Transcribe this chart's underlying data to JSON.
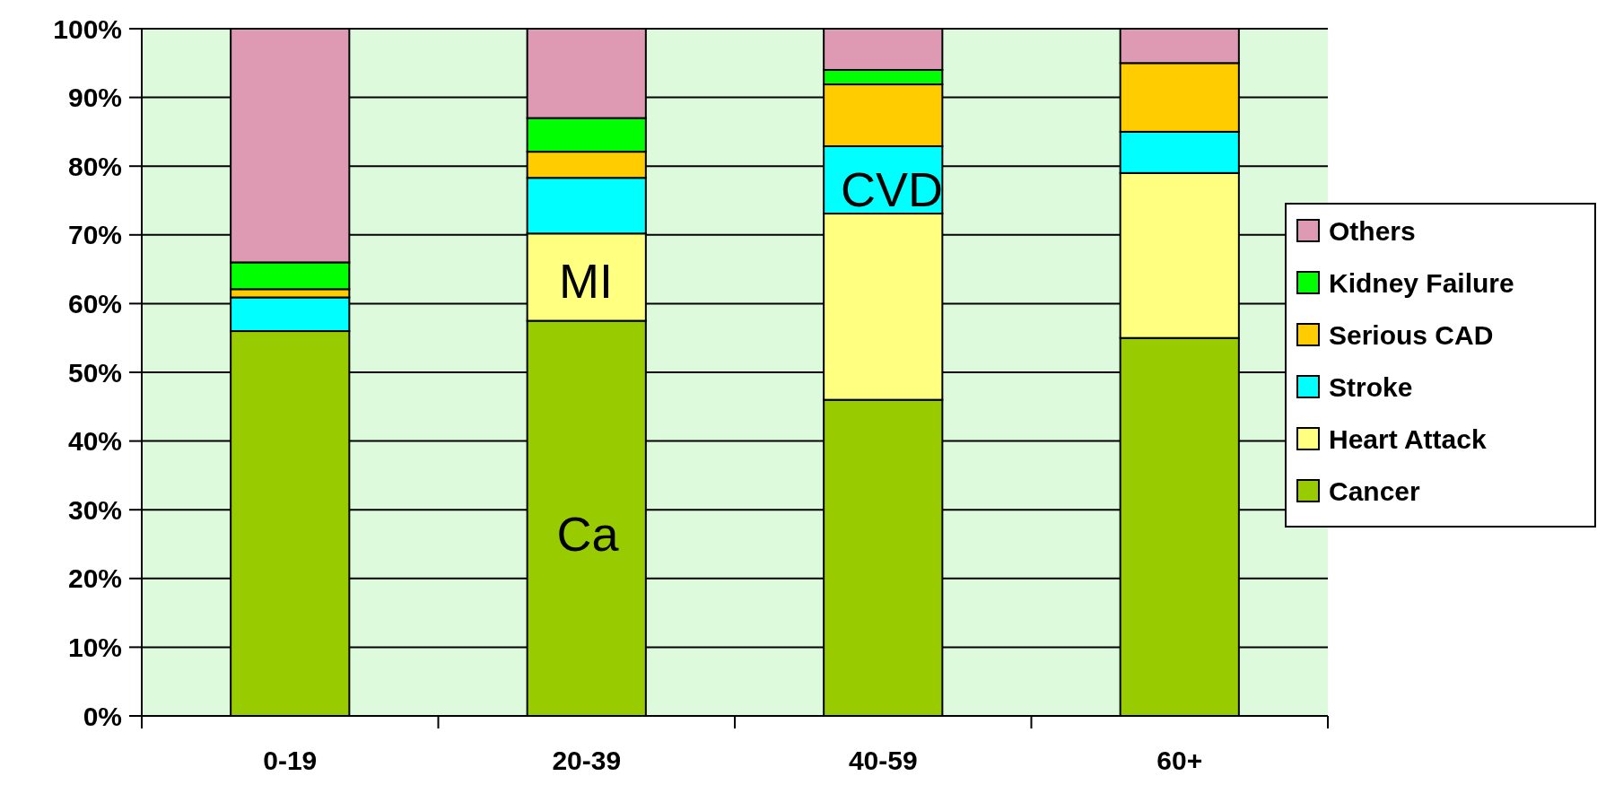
{
  "chart_data": {
    "type": "bar",
    "stacked": true,
    "categories": [
      "0-19",
      "20-39",
      "40-59",
      "60+"
    ],
    "series": [
      {
        "name": "Cancer",
        "color": "#99cc00",
        "values": [
          56,
          57.5,
          46,
          55
        ]
      },
      {
        "name": "Heart Attack",
        "color": "#ffff80",
        "values": [
          0,
          12.7,
          27.1,
          24
        ]
      },
      {
        "name": "Stroke",
        "color": "#00ffff",
        "values": [
          4.9,
          8.1,
          9.8,
          6
        ]
      },
      {
        "name": "Serious CAD",
        "color": "#ffcc00",
        "values": [
          1.2,
          3.8,
          9,
          10
        ]
      },
      {
        "name": "Kidney Failure",
        "color": "#00ff00",
        "values": [
          3.9,
          4.9,
          2.1,
          0
        ]
      },
      {
        "name": "Others",
        "color": "#dd9ab2",
        "values": [
          34,
          13,
          6,
          5
        ]
      }
    ],
    "ylim": [
      0,
      100
    ],
    "yticks": [
      {
        "value": 0,
        "label": "0%"
      },
      {
        "value": 10,
        "label": "10%"
      },
      {
        "value": 20,
        "label": "20%"
      },
      {
        "value": 30,
        "label": "30%"
      },
      {
        "value": 40,
        "label": "40%"
      },
      {
        "value": 50,
        "label": "50%"
      },
      {
        "value": 60,
        "label": "60%"
      },
      {
        "value": 70,
        "label": "70%"
      },
      {
        "value": 80,
        "label": "80%"
      },
      {
        "value": 90,
        "label": "90%"
      },
      {
        "value": 100,
        "label": "100%"
      }
    ],
    "grid": "y",
    "legend": "right",
    "annotations": [
      "Ca",
      "MI",
      "CVD"
    ]
  }
}
